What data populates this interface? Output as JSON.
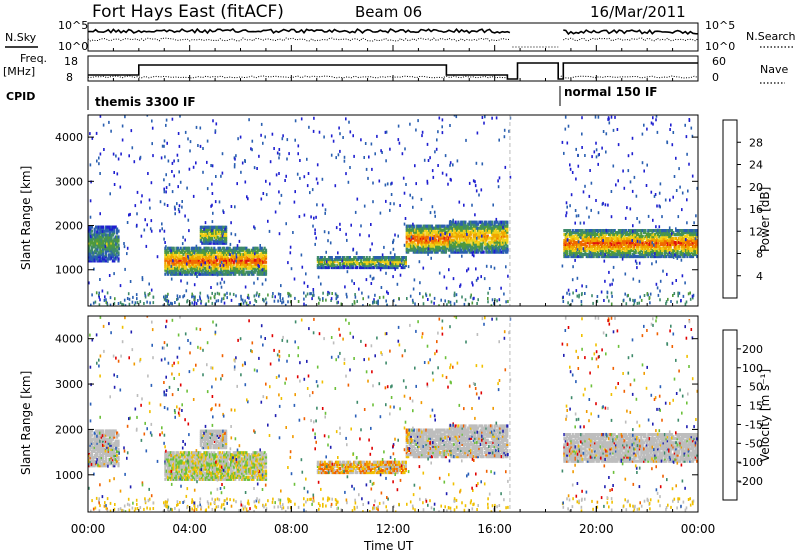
{
  "header": {
    "title": "Fort Hays East (fitACF)",
    "beam": "Beam 06",
    "date": "16/Mar/2011"
  },
  "top_panels": {
    "nsky_label": "N.Sky",
    "nsearch_label": "N.Search",
    "noise_ticks": [
      "10^5",
      "10^0"
    ],
    "freq_label_line1": "Freq.",
    "freq_label_line2": "[MHz]",
    "freq_ticks": [
      "18",
      "8"
    ],
    "nave_label": "Nave",
    "nave_ticks": [
      "60",
      "0"
    ],
    "cpid_label": "CPID",
    "cpid_segments": [
      {
        "label": "themis 3300 IF",
        "start": 0,
        "end": 18.6
      },
      {
        "label": "normal 150 IF",
        "start": 18.6,
        "end": 24
      }
    ]
  },
  "colors": {
    "power_scale": [
      "#1f1fd0",
      "#2a5fb0",
      "#3e8a6a",
      "#4f9a3c",
      "#f2d21a",
      "#f0a800",
      "#f06a00",
      "#e01010"
    ],
    "velocity_scale": [
      "#1f1fb0",
      "#2a5fb8",
      "#3e8a6a",
      "#6cc03a",
      "#bdbdbd",
      "#f0c000",
      "#f09a00",
      "#f06000",
      "#e00000"
    ],
    "trace": "#000000"
  },
  "chart_data": [
    {
      "type": "heatmap",
      "name": "power",
      "xlabel": "",
      "ylabel": "Slant Range [km]",
      "xlim": [
        0,
        24
      ],
      "ylim": [
        180,
        4500
      ],
      "y_ticks": [
        "1000",
        "2000",
        "3000",
        "4000"
      ],
      "colorbar_label": "Power [dB]",
      "colorbar_ticks": [
        "4",
        "8",
        "12",
        "16",
        "20",
        "24",
        "28"
      ],
      "data_gaps_hours": [
        [
          16.6,
          18.6
        ]
      ],
      "echo_regions": [
        {
          "t": [
            0.0,
            1.2
          ],
          "range_km": [
            1200,
            2000
          ],
          "peak_db": 16
        },
        {
          "t": [
            3.0,
            7.0
          ],
          "range_km": [
            900,
            1500
          ],
          "peak_db": 28
        },
        {
          "t": [
            4.4,
            5.4
          ],
          "range_km": [
            1600,
            2000
          ],
          "peak_db": 20
        },
        {
          "t": [
            9.0,
            12.5
          ],
          "range_km": [
            1050,
            1300
          ],
          "peak_db": 20
        },
        {
          "t": [
            12.5,
            14.2
          ],
          "range_km": [
            1400,
            2000
          ],
          "peak_db": 28
        },
        {
          "t": [
            14.2,
            16.5
          ],
          "range_km": [
            1400,
            2100
          ],
          "peak_db": 24
        },
        {
          "t": [
            18.7,
            24.0
          ],
          "range_km": [
            1300,
            1900
          ],
          "peak_db": 28
        }
      ]
    },
    {
      "type": "heatmap",
      "name": "velocity",
      "xlabel": "Time UT",
      "ylabel": "Slant Range [km]",
      "xlim": [
        0,
        24
      ],
      "ylim": [
        180,
        4500
      ],
      "x_ticks": [
        "00:00",
        "04:00",
        "08:00",
        "12:00",
        "16:00",
        "20:00",
        "00:00"
      ],
      "y_ticks": [
        "1000",
        "2000",
        "3000",
        "4000"
      ],
      "colorbar_label": "Velocity [m s⁻¹]",
      "colorbar_ticks": [
        "200",
        "100",
        "50",
        "15",
        "-15",
        "-50",
        "-100",
        "-200"
      ],
      "data_gaps_hours": [
        [
          16.6,
          18.6
        ]
      ]
    }
  ]
}
